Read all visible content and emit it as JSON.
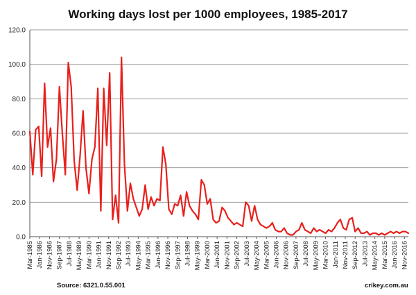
{
  "footer": {
    "source": "Source: 6321.0.55.001",
    "site": "crikey.com.au"
  },
  "chart_data": {
    "type": "line",
    "title": "Working days lost per 1000 employees, 1985-2017",
    "xlabel": "",
    "ylabel": "",
    "ylim": [
      0,
      120
    ],
    "yticks": [
      "0.0",
      "20.0",
      "40.0",
      "60.0",
      "80.0",
      "100.0",
      "120.0"
    ],
    "x_tick_labels": [
      "Mar-1985",
      "Jan-1986",
      "Nov-1986",
      "Sep-1987",
      "Jul-1988",
      "May-1989",
      "Mar-1990",
      "Jan-1991",
      "Nov-1991",
      "Sep-1992",
      "Jul-1993",
      "May-1994",
      "Mar-1995",
      "Jan-1996",
      "Nov-1996",
      "Sep-1997",
      "Jul-1998",
      "May-1999",
      "Mar-2000",
      "Jan-2001",
      "Nov-2001",
      "Sep-2002",
      "Jul-2003",
      "May-2004",
      "Mar-2005",
      "Jan-2006",
      "Nov-2006",
      "Sep-2007",
      "Jul-2008",
      "May-2009",
      "Mar-2010",
      "Jan-2011",
      "Nov-2011",
      "Sep-2012",
      "Jul-2013",
      "May-2014",
      "Mar-2015",
      "Jan-2016",
      "Nov-2016"
    ],
    "grid": "horizontal",
    "legend": "none",
    "line_color": "#e8201c",
    "series": [
      {
        "x": [
          "Mar-1985",
          "Jun-1985",
          "Sep-1985",
          "Dec-1985",
          "Mar-1986",
          "Jun-1986",
          "Sep-1986",
          "Dec-1986",
          "Mar-1987",
          "Jun-1987",
          "Sep-1987",
          "Dec-1987",
          "Mar-1988",
          "Jun-1988",
          "Sep-1988",
          "Dec-1988",
          "Mar-1989",
          "Jun-1989",
          "Sep-1989",
          "Dec-1989",
          "Mar-1990",
          "Jun-1990",
          "Sep-1990",
          "Dec-1990",
          "Mar-1991",
          "Jun-1991",
          "Sep-1991",
          "Dec-1991",
          "Mar-1992",
          "Jun-1992",
          "Sep-1992",
          "Dec-1992",
          "Mar-1993",
          "Jun-1993",
          "Sep-1993",
          "Dec-1993",
          "Mar-1994",
          "Jun-1994",
          "Sep-1994",
          "Dec-1994",
          "Mar-1995",
          "Jun-1995",
          "Sep-1995",
          "Dec-1995",
          "Mar-1996",
          "Jun-1996",
          "Sep-1996",
          "Dec-1996",
          "Mar-1997",
          "Jun-1997",
          "Sep-1997",
          "Dec-1997",
          "Mar-1998",
          "Jun-1998",
          "Sep-1998",
          "Dec-1998",
          "Mar-1999",
          "Jun-1999",
          "Sep-1999",
          "Dec-1999",
          "Mar-2000",
          "Jun-2000",
          "Sep-2000",
          "Dec-2000",
          "Mar-2001",
          "Jun-2001",
          "Sep-2001",
          "Dec-2001",
          "Mar-2002",
          "Jun-2002",
          "Sep-2002",
          "Dec-2002",
          "Mar-2003",
          "Jun-2003",
          "Sep-2003",
          "Dec-2003",
          "Mar-2004",
          "Jun-2004",
          "Sep-2004",
          "Dec-2004",
          "Mar-2005",
          "Jun-2005",
          "Sep-2005",
          "Dec-2005",
          "Mar-2006",
          "Jun-2006",
          "Sep-2006",
          "Dec-2006",
          "Mar-2007",
          "Jun-2007",
          "Sep-2007",
          "Dec-2007",
          "Mar-2008",
          "Jun-2008",
          "Sep-2008",
          "Dec-2008",
          "Mar-2009",
          "Jun-2009",
          "Sep-2009",
          "Dec-2009",
          "Mar-2010",
          "Jun-2010",
          "Sep-2010",
          "Dec-2010",
          "Mar-2011",
          "Jun-2011",
          "Sep-2011",
          "Dec-2011",
          "Mar-2012",
          "Jun-2012",
          "Sep-2012",
          "Dec-2012",
          "Mar-2013",
          "Jun-2013",
          "Sep-2013",
          "Dec-2013",
          "Mar-2014",
          "Jun-2014",
          "Sep-2014",
          "Dec-2014",
          "Mar-2015",
          "Jun-2015",
          "Sep-2015",
          "Dec-2015",
          "Mar-2016",
          "Jun-2016",
          "Sep-2016",
          "Dec-2016",
          "Mar-2017"
        ],
        "values": [
          61,
          36,
          62,
          64,
          35,
          89,
          52,
          63,
          32,
          45,
          87,
          60,
          36,
          101,
          87,
          44,
          27,
          47,
          73,
          40,
          25,
          45,
          52,
          86,
          15,
          86,
          53,
          95,
          10,
          24,
          8,
          104,
          42,
          15,
          31,
          22,
          17,
          12,
          16,
          30,
          16,
          23,
          18,
          22,
          21,
          52,
          42,
          16,
          13,
          19,
          18,
          24,
          12,
          26,
          18,
          15,
          13,
          10,
          33,
          30,
          19,
          22,
          10,
          8,
          9,
          17,
          15,
          11,
          9,
          7,
          8,
          7,
          6,
          20,
          18,
          9,
          18,
          10,
          7,
          6,
          5,
          6,
          8,
          4,
          3,
          3,
          5,
          2,
          1,
          1,
          3,
          4,
          8,
          4,
          3,
          2,
          5,
          3,
          4,
          3,
          2,
          4,
          3,
          5,
          8,
          10,
          5,
          4,
          10,
          11,
          3,
          5,
          2,
          2,
          3,
          1,
          2,
          2,
          1,
          2,
          1,
          2,
          3,
          2,
          3,
          2,
          3,
          3,
          2
        ]
      }
    ]
  }
}
